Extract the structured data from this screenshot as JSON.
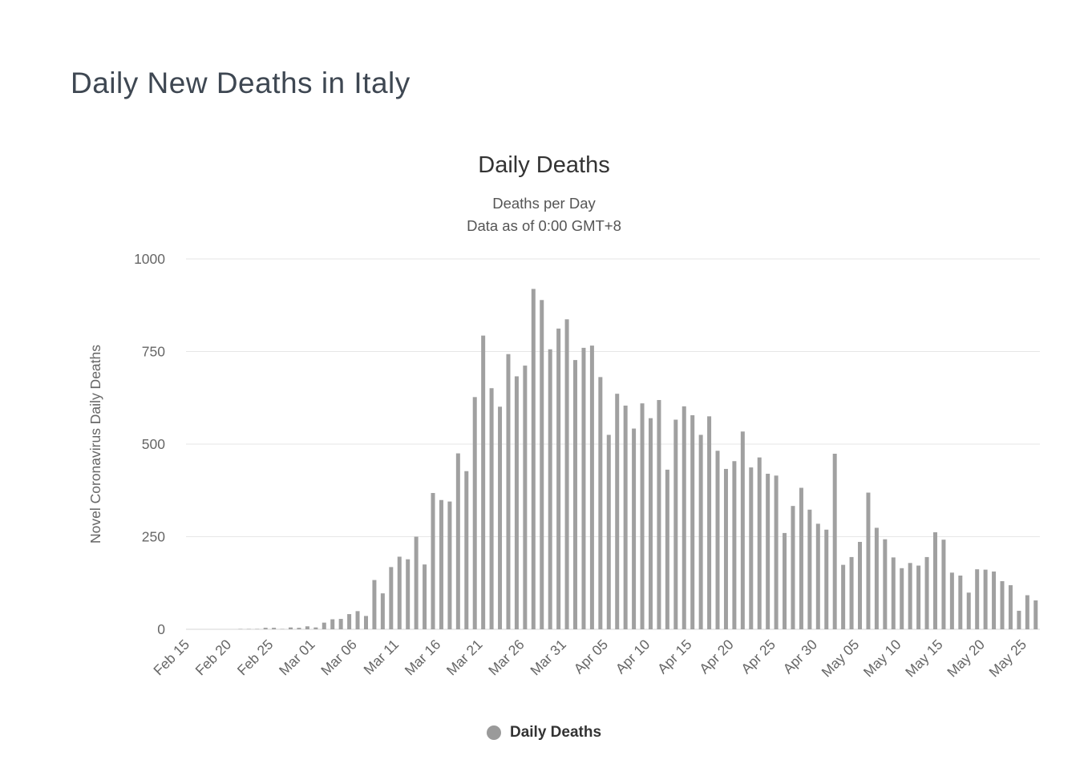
{
  "page": {
    "title": "Daily New Deaths in Italy"
  },
  "chart_data": {
    "type": "bar",
    "title": "Daily Deaths",
    "subtitle": [
      "Deaths per Day",
      "Data as of 0:00 GMT+8"
    ],
    "xlabel": "",
    "ylabel": "Novel Coronavirus Daily Deaths",
    "ylim": [
      0,
      1000
    ],
    "yticks": [
      0,
      250,
      500,
      750,
      1000
    ],
    "grid": true,
    "legend_position": "bottom",
    "bar_color": "#a0a0a0",
    "tick_label_color": "#666666",
    "gridline_color": "#e6e6e6",
    "x_tick_every": 5,
    "categories": [
      "Feb 15",
      "Feb 16",
      "Feb 17",
      "Feb 18",
      "Feb 19",
      "Feb 20",
      "Feb 21",
      "Feb 22",
      "Feb 23",
      "Feb 24",
      "Feb 25",
      "Feb 26",
      "Feb 27",
      "Feb 28",
      "Feb 29",
      "Mar 01",
      "Mar 02",
      "Mar 03",
      "Mar 04",
      "Mar 05",
      "Mar 06",
      "Mar 07",
      "Mar 08",
      "Mar 09",
      "Mar 10",
      "Mar 11",
      "Mar 12",
      "Mar 13",
      "Mar 14",
      "Mar 15",
      "Mar 16",
      "Mar 17",
      "Mar 18",
      "Mar 19",
      "Mar 20",
      "Mar 21",
      "Mar 22",
      "Mar 23",
      "Mar 24",
      "Mar 25",
      "Mar 26",
      "Mar 27",
      "Mar 28",
      "Mar 29",
      "Mar 30",
      "Mar 31",
      "Apr 01",
      "Apr 02",
      "Apr 03",
      "Apr 04",
      "Apr 05",
      "Apr 06",
      "Apr 07",
      "Apr 08",
      "Apr 09",
      "Apr 10",
      "Apr 11",
      "Apr 12",
      "Apr 13",
      "Apr 14",
      "Apr 15",
      "Apr 16",
      "Apr 17",
      "Apr 18",
      "Apr 19",
      "Apr 20",
      "Apr 21",
      "Apr 22",
      "Apr 23",
      "Apr 24",
      "Apr 25",
      "Apr 26",
      "Apr 27",
      "Apr 28",
      "Apr 29",
      "Apr 30",
      "May 01",
      "May 02",
      "May 03",
      "May 04",
      "May 05",
      "May 06",
      "May 07",
      "May 08",
      "May 09",
      "May 10",
      "May 11",
      "May 12",
      "May 13",
      "May 14",
      "May 15",
      "May 16",
      "May 17",
      "May 18",
      "May 19",
      "May 20",
      "May 21",
      "May 22",
      "May 23",
      "May 24",
      "May 25",
      "May 26"
    ],
    "series": [
      {
        "name": "Daily Deaths",
        "color": "#a0a0a0",
        "values": [
          0,
          0,
          0,
          0,
          0,
          0,
          1,
          1,
          1,
          4,
          4,
          1,
          5,
          4,
          8,
          5,
          18,
          27,
          28,
          41,
          49,
          36,
          133,
          97,
          168,
          196,
          189,
          250,
          175,
          368,
          349,
          345,
          475,
          427,
          627,
          793,
          651,
          601,
          743,
          683,
          712,
          919,
          889,
          756,
          812,
          837,
          727,
          760,
          766,
          681,
          525,
          636,
          604,
          542,
          610,
          570,
          619,
          431,
          566,
          602,
          578,
          525,
          575,
          482,
          433,
          454,
          534,
          437,
          464,
          420,
          415,
          260,
          333,
          382,
          323,
          285,
          269,
          474,
          174,
          195,
          236,
          369,
          274,
          243,
          194,
          165,
          179,
          172,
          195,
          262,
          242,
          153,
          145,
          99,
          162,
          161,
          156,
          130,
          119,
          50,
          92,
          78
        ]
      }
    ]
  }
}
